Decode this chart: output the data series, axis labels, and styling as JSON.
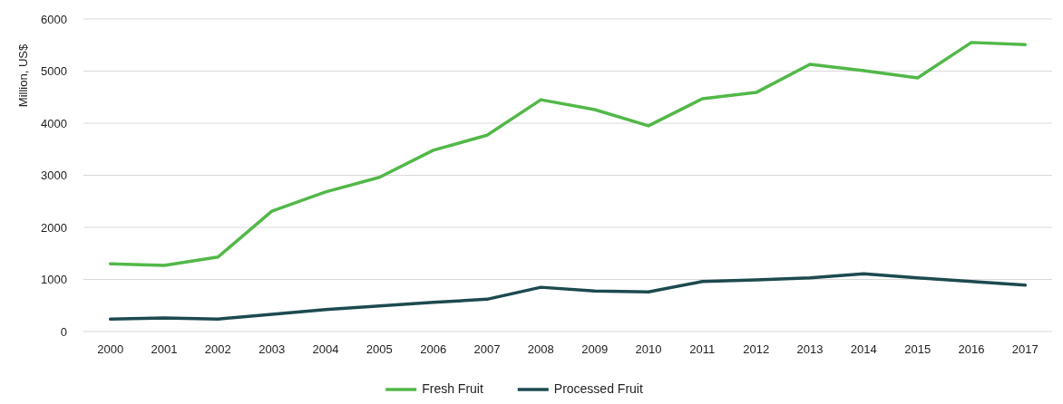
{
  "chart_data": {
    "type": "line",
    "ylabel": "Million, US$",
    "categories": [
      "2000",
      "2001",
      "2002",
      "2003",
      "2004",
      "2005",
      "2006",
      "2007",
      "2008",
      "2009",
      "2010",
      "2011",
      "2012",
      "2013",
      "2014",
      "2015",
      "2016",
      "2017"
    ],
    "series": [
      {
        "name": "Fresh Fruit",
        "color": "#52b848",
        "values": [
          1300,
          1270,
          1430,
          2310,
          2680,
          2960,
          3480,
          3770,
          4450,
          4260,
          3950,
          4470,
          4590,
          5130,
          5010,
          4870,
          5550,
          5510
        ]
      },
      {
        "name": "Processed Fruit",
        "color": "#1c4a4f",
        "values": [
          240,
          260,
          240,
          330,
          420,
          490,
          560,
          620,
          850,
          780,
          760,
          960,
          990,
          1030,
          1110,
          1030,
          960,
          890
        ]
      }
    ],
    "ylim": [
      0,
      6000
    ],
    "yticks": [
      0,
      1000,
      2000,
      3000,
      4000,
      5000,
      6000
    ],
    "grid": "y",
    "legend": "bottom",
    "marker": "none",
    "line_style": "solid"
  }
}
